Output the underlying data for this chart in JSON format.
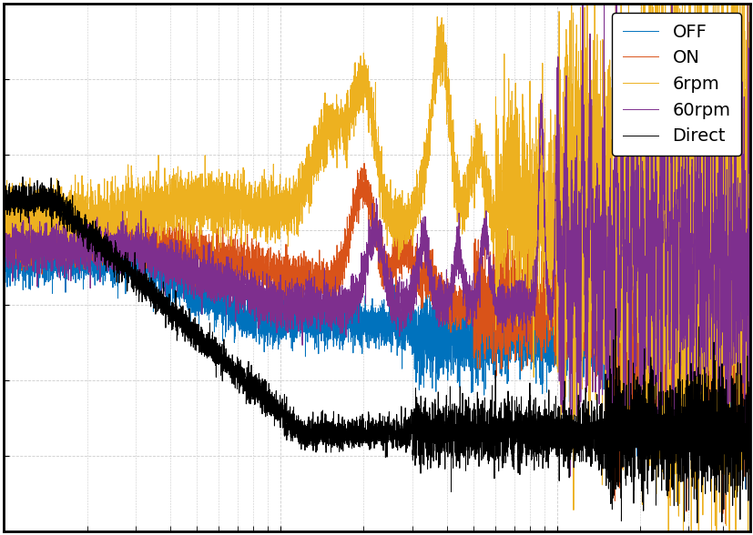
{
  "colors": {
    "OFF": "#0072BD",
    "ON": "#D95319",
    "6rpm": "#EDB120",
    "60rpm": "#7E2F8E",
    "Direct": "#000000"
  },
  "legend_labels": [
    "OFF",
    "ON",
    "6rpm",
    "60rpm",
    "Direct"
  ],
  "xlim": [
    1,
    500
  ],
  "grid_color": "#cccccc",
  "background_color": "#ffffff",
  "linewidth": 0.7,
  "fig_width": 8.28,
  "fig_height": 5.88,
  "dpi": 100
}
